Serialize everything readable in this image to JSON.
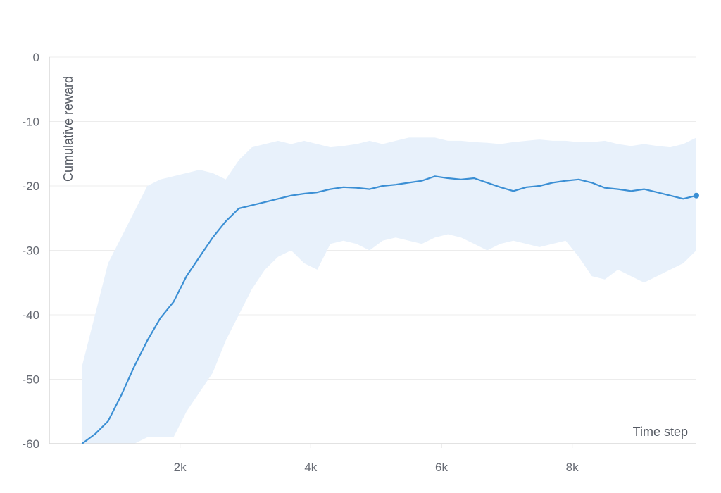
{
  "chart_data": {
    "type": "line",
    "xlabel": "Time step",
    "ylabel": "Cumulative reward",
    "xlim": [
      0,
      9900
    ],
    "ylim": [
      -60,
      0
    ],
    "x_ticks": [
      2000,
      4000,
      6000,
      8000
    ],
    "x_tick_labels": [
      "2k",
      "4k",
      "6k",
      "8k"
    ],
    "y_ticks": [
      0,
      -10,
      -20,
      -30,
      -40,
      -50,
      -60
    ],
    "y_tick_labels": [
      "0",
      "-10",
      "-20",
      "-30",
      "-40",
      "-50",
      "-60"
    ],
    "grid": "horizontal",
    "colors": {
      "line": "#3b8fd4",
      "band": "#e8f1fb",
      "grid": "#ececec",
      "axis": "#d9d9d9"
    },
    "series": [
      {
        "x": [
          500,
          700,
          900,
          1100,
          1300,
          1500,
          1700,
          1900,
          2100,
          2300,
          2500,
          2700,
          2900,
          3100,
          3300,
          3500,
          3700,
          3900,
          4100,
          4300,
          4500,
          4700,
          4900,
          5100,
          5300,
          5500,
          5700,
          5900,
          6100,
          6300,
          6500,
          6700,
          6900,
          7100,
          7300,
          7500,
          7700,
          7900,
          8100,
          8300,
          8500,
          8700,
          8900,
          9100,
          9300,
          9500,
          9700,
          9900
        ],
        "y": [
          -60,
          -58.5,
          -56.5,
          -52.5,
          -48,
          -44,
          -40.5,
          -38,
          -34,
          -31,
          -28,
          -25.5,
          -23.5,
          -23,
          -22.5,
          -22,
          -21.5,
          -21.2,
          -21,
          -20.5,
          -20.2,
          -20.3,
          -20.5,
          -20,
          -19.8,
          -19.5,
          -19.2,
          -18.5,
          -18.8,
          -19,
          -18.8,
          -19.5,
          -20.2,
          -20.8,
          -20.2,
          -20,
          -19.5,
          -19.2,
          -19,
          -19.5,
          -20.3,
          -20.5,
          -20.8,
          -20.5,
          -21,
          -21.5,
          -22,
          -21.5
        ],
        "lower": [
          -60,
          -60,
          -60,
          -60,
          -60,
          -59,
          -59,
          -59,
          -55,
          -52,
          -49,
          -44,
          -40,
          -36,
          -33,
          -31,
          -30,
          -32,
          -33,
          -29,
          -28.5,
          -29,
          -30,
          -28.5,
          -28,
          -28.5,
          -29,
          -28,
          -27.5,
          -28,
          -29,
          -30,
          -29,
          -28.5,
          -29,
          -29.5,
          -29,
          -28.5,
          -31,
          -34,
          -34.5,
          -33,
          -34,
          -35,
          -34,
          -33,
          -32,
          -30
        ],
        "upper": [
          -48,
          -40,
          -32,
          -28,
          -24,
          -20,
          -19,
          -18.5,
          -18,
          -17.5,
          -18,
          -19,
          -16,
          -14,
          -13.5,
          -13,
          -13.5,
          -13,
          -13.5,
          -14,
          -13.8,
          -13.5,
          -13,
          -13.5,
          -13,
          -12.5,
          -12.5,
          -12.5,
          -13,
          -13,
          -13.2,
          -13.3,
          -13.5,
          -13.2,
          -13,
          -12.8,
          -13,
          -13,
          -13.2,
          -13.2,
          -13,
          -13.5,
          -13.8,
          -13.5,
          -13.8,
          -14,
          -13.5,
          -12.5
        ]
      }
    ]
  }
}
